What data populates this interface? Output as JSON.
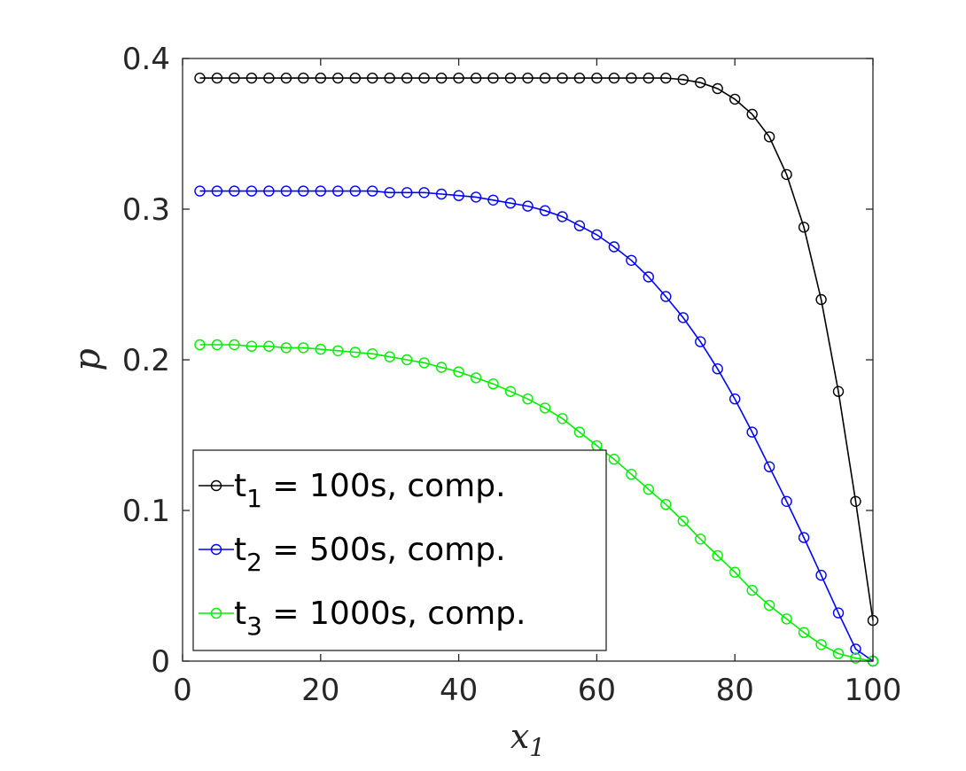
{
  "chart_data": {
    "type": "line",
    "xlabel": "x",
    "xlabel_sub": "1",
    "ylabel": "p",
    "xlim": [
      0,
      100
    ],
    "ylim": [
      0,
      0.4
    ],
    "xticks": [
      0,
      20,
      40,
      60,
      80,
      100
    ],
    "xtick_labels": [
      "0",
      "20",
      "40",
      "60",
      "80",
      "100"
    ],
    "yticks": [
      0,
      0.1,
      0.2,
      0.3,
      0.4
    ],
    "ytick_labels": [
      "0",
      "0.1",
      "0.2",
      "0.3",
      "0.4"
    ],
    "grid": false,
    "legend_position": "bottom-left",
    "x": [
      2.5,
      5,
      7.5,
      10,
      12.5,
      15,
      17.5,
      20,
      22.5,
      25,
      27.5,
      30,
      32.5,
      35,
      37.5,
      40,
      42.5,
      45,
      47.5,
      50,
      52.5,
      55,
      57.5,
      60,
      62.5,
      65,
      67.5,
      70,
      72.5,
      75,
      77.5,
      80,
      82.5,
      85,
      87.5,
      90,
      92.5,
      95,
      97.5,
      100
    ],
    "series": [
      {
        "name_prefix": "t",
        "name_sub": "1",
        "name_suffix": " = 100s, comp.",
        "color": "#000000",
        "values": [
          0.387,
          0.387,
          0.387,
          0.387,
          0.387,
          0.387,
          0.387,
          0.387,
          0.387,
          0.387,
          0.387,
          0.387,
          0.387,
          0.387,
          0.387,
          0.387,
          0.387,
          0.387,
          0.387,
          0.387,
          0.387,
          0.387,
          0.387,
          0.387,
          0.387,
          0.387,
          0.387,
          0.387,
          0.386,
          0.384,
          0.38,
          0.373,
          0.363,
          0.348,
          0.323,
          0.288,
          0.24,
          0.179,
          0.106,
          0.027
        ]
      },
      {
        "name_prefix": "t",
        "name_sub": "2",
        "name_suffix": " = 500s, comp.",
        "color": "#0000ff",
        "values": [
          0.312,
          0.312,
          0.312,
          0.312,
          0.312,
          0.312,
          0.312,
          0.312,
          0.312,
          0.312,
          0.312,
          0.311,
          0.311,
          0.311,
          0.31,
          0.309,
          0.308,
          0.306,
          0.304,
          0.302,
          0.299,
          0.295,
          0.289,
          0.283,
          0.275,
          0.266,
          0.255,
          0.242,
          0.228,
          0.212,
          0.194,
          0.174,
          0.152,
          0.129,
          0.106,
          0.082,
          0.057,
          0.032,
          0.008,
          0.0
        ]
      },
      {
        "name_prefix": "t",
        "name_sub": "3",
        "name_suffix": " = 1000s, comp.",
        "color": "#00ee00",
        "values": [
          0.21,
          0.21,
          0.21,
          0.209,
          0.209,
          0.208,
          0.208,
          0.207,
          0.206,
          0.205,
          0.204,
          0.202,
          0.2,
          0.198,
          0.195,
          0.192,
          0.188,
          0.184,
          0.179,
          0.174,
          0.168,
          0.161,
          0.152,
          0.143,
          0.134,
          0.124,
          0.114,
          0.104,
          0.093,
          0.081,
          0.07,
          0.059,
          0.047,
          0.037,
          0.028,
          0.019,
          0.011,
          0.005,
          0.002,
          0.0
        ]
      }
    ]
  }
}
